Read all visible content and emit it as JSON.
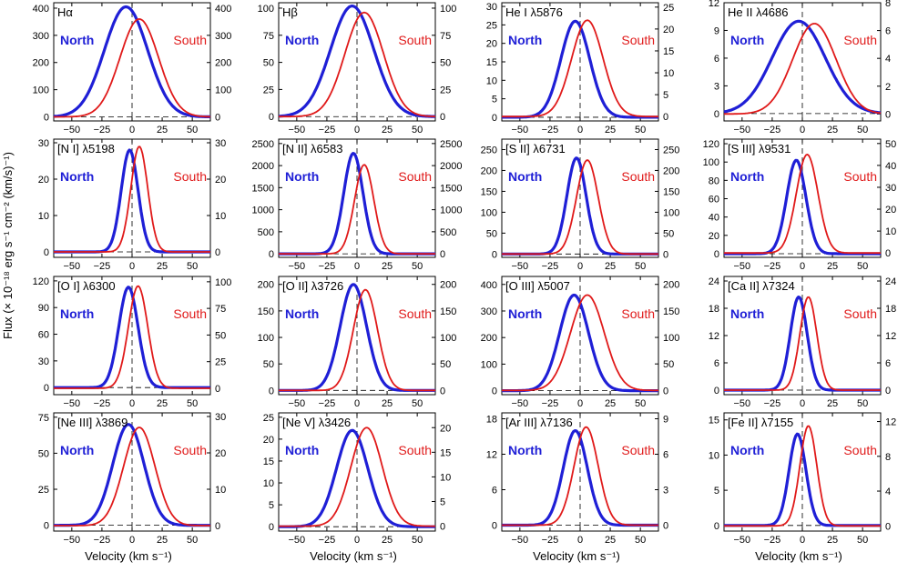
{
  "figure": {
    "ylabel": "Flux (× 10⁻¹⁸ erg s⁻¹ cm⁻² (km/s)⁻¹)",
    "xlabel": "Velocity (km s⁻¹)",
    "north_label": "North",
    "south_label": "South",
    "north_color": "#1f1fd6",
    "south_color": "#e01a1a"
  },
  "chart_data": [
    {
      "type": "line",
      "title": "Hα",
      "xlim": [
        -65,
        65
      ],
      "x_ticks": [
        -50,
        -25,
        0,
        25,
        50
      ],
      "left_ticks": [
        0,
        100,
        200,
        300,
        400
      ],
      "right_ticks": [
        0,
        100,
        200,
        300,
        400
      ],
      "left_ylim": [
        -15,
        420
      ],
      "right_ylim": [
        -15,
        420
      ],
      "series": [
        {
          "name": "North",
          "profile": {
            "center": -5,
            "peak": 405,
            "width": 18
          }
        },
        {
          "name": "South",
          "profile": {
            "center": 6,
            "peak": 360,
            "width": 16
          }
        }
      ]
    },
    {
      "type": "line",
      "title": "Hβ",
      "xlim": [
        -65,
        65
      ],
      "x_ticks": [
        -50,
        -25,
        0,
        25,
        50
      ],
      "left_ticks": [
        0,
        25,
        50,
        75,
        100
      ],
      "right_ticks": [
        0,
        25,
        50,
        75,
        100
      ],
      "left_ylim": [
        -4,
        105
      ],
      "right_ylim": [
        -4,
        105
      ],
      "series": [
        {
          "name": "North",
          "profile": {
            "center": -4,
            "peak": 102,
            "width": 18
          }
        },
        {
          "name": "South",
          "profile": {
            "center": 6,
            "peak": 96,
            "width": 16
          }
        }
      ]
    },
    {
      "type": "line",
      "title": "He I λ5876",
      "xlim": [
        -65,
        65
      ],
      "x_ticks": [
        -50,
        -25,
        0,
        25,
        50
      ],
      "left_ticks": [
        0,
        5,
        10,
        15,
        20,
        25,
        30
      ],
      "right_ticks": [
        0,
        5,
        10,
        15,
        20,
        25
      ],
      "left_ylim": [
        -1,
        31
      ],
      "right_ylim": [
        -1,
        26
      ],
      "series": [
        {
          "name": "North",
          "profile": {
            "center": -4,
            "peak": 26,
            "width": 12
          }
        },
        {
          "name": "South",
          "profile": {
            "center": 6,
            "peak": 22,
            "width": 13
          }
        }
      ]
    },
    {
      "type": "line",
      "title": "He II λ4686",
      "xlim": [
        -65,
        65
      ],
      "x_ticks": [
        -50,
        -25,
        0,
        25,
        50
      ],
      "left_ticks": [
        0,
        3,
        6,
        9,
        12
      ],
      "right_ticks": [
        0,
        2,
        4,
        6,
        8
      ],
      "left_ylim": [
        -0.8,
        12
      ],
      "right_ylim": [
        -0.5,
        8
      ],
      "series": [
        {
          "name": "North",
          "profile": {
            "center": -3,
            "peak": 10,
            "width": 22
          }
        },
        {
          "name": "South",
          "profile": {
            "center": 10,
            "peak": 6.5,
            "width": 18
          }
        }
      ]
    },
    {
      "type": "line",
      "title": "[N I] λ5198",
      "xlim": [
        -65,
        65
      ],
      "x_ticks": [
        -50,
        -25,
        0,
        25,
        50
      ],
      "left_ticks": [
        0,
        10,
        20,
        30
      ],
      "right_ticks": [
        0,
        10,
        20,
        30
      ],
      "left_ylim": [
        -1.5,
        31
      ],
      "right_ylim": [
        -1.5,
        31
      ],
      "series": [
        {
          "name": "North",
          "profile": {
            "center": -2,
            "peak": 28,
            "width": 7
          }
        },
        {
          "name": "South",
          "profile": {
            "center": 6,
            "peak": 29,
            "width": 7
          }
        }
      ]
    },
    {
      "type": "line",
      "title": "[N II] λ6583",
      "xlim": [
        -65,
        65
      ],
      "x_ticks": [
        -50,
        -25,
        0,
        25,
        50
      ],
      "left_ticks": [
        0,
        500,
        1000,
        1500,
        2000,
        2500
      ],
      "right_ticks": [
        0,
        500,
        1000,
        1500,
        2000,
        2500
      ],
      "left_ylim": [
        -80,
        2600
      ],
      "right_ylim": [
        -80,
        2600
      ],
      "series": [
        {
          "name": "North",
          "profile": {
            "center": -3,
            "peak": 2280,
            "width": 8
          }
        },
        {
          "name": "South",
          "profile": {
            "center": 6,
            "peak": 2020,
            "width": 8
          }
        }
      ]
    },
    {
      "type": "line",
      "title": "[S II] λ6731",
      "xlim": [
        -65,
        65
      ],
      "x_ticks": [
        -50,
        -25,
        0,
        25,
        50
      ],
      "left_ticks": [
        0,
        50,
        100,
        150,
        200,
        250
      ],
      "right_ticks": [
        0,
        50,
        100,
        150,
        200,
        250
      ],
      "left_ylim": [
        -8,
        275
      ],
      "right_ylim": [
        -8,
        275
      ],
      "series": [
        {
          "name": "North",
          "profile": {
            "center": -3,
            "peak": 230,
            "width": 8
          }
        },
        {
          "name": "South",
          "profile": {
            "center": 6,
            "peak": 225,
            "width": 9
          }
        }
      ]
    },
    {
      "type": "line",
      "title": "[S III] λ9531",
      "xlim": [
        -65,
        65
      ],
      "x_ticks": [
        -50,
        -25,
        0,
        25,
        50
      ],
      "left_ticks": [
        0,
        20,
        40,
        60,
        80,
        100,
        120
      ],
      "right_ticks": [
        0,
        10,
        20,
        30,
        40,
        50
      ],
      "left_ylim": [
        -4,
        125
      ],
      "right_ylim": [
        -2,
        52
      ],
      "series": [
        {
          "name": "North",
          "profile": {
            "center": -5,
            "peak": 102,
            "width": 8
          }
        },
        {
          "name": "South",
          "profile": {
            "center": 4,
            "peak": 45,
            "width": 9
          }
        }
      ]
    },
    {
      "type": "line",
      "title": "[O I] λ6300",
      "xlim": [
        -65,
        65
      ],
      "x_ticks": [
        -50,
        -25,
        0,
        25,
        50
      ],
      "left_ticks": [
        0,
        30,
        60,
        90,
        120
      ],
      "right_ticks": [
        0,
        25,
        50,
        75,
        100
      ],
      "left_ylim": [
        -8,
        125
      ],
      "right_ylim": [
        -6,
        105
      ],
      "series": [
        {
          "name": "North",
          "profile": {
            "center": -3,
            "peak": 113,
            "width": 8
          }
        },
        {
          "name": "South",
          "profile": {
            "center": 5,
            "peak": 96,
            "width": 8
          }
        }
      ]
    },
    {
      "type": "line",
      "title": "[O II] λ3726",
      "xlim": [
        -65,
        65
      ],
      "x_ticks": [
        -50,
        -25,
        0,
        25,
        50
      ],
      "left_ticks": [
        0,
        50,
        100,
        150,
        200
      ],
      "right_ticks": [
        0,
        50,
        100,
        150,
        200
      ],
      "left_ylim": [
        -8,
        215
      ],
      "right_ylim": [
        -8,
        215
      ],
      "series": [
        {
          "name": "North",
          "profile": {
            "center": -3,
            "peak": 200,
            "width": 11
          }
        },
        {
          "name": "South",
          "profile": {
            "center": 7,
            "peak": 190,
            "width": 10
          }
        }
      ]
    },
    {
      "type": "line",
      "title": "[O III] λ5007",
      "xlim": [
        -65,
        65
      ],
      "x_ticks": [
        -50,
        -25,
        0,
        25,
        50
      ],
      "left_ticks": [
        0,
        100,
        200,
        300,
        400
      ],
      "right_ticks": [
        0,
        50,
        100,
        150,
        200
      ],
      "left_ylim": [
        -15,
        430
      ],
      "right_ylim": [
        -8,
        215
      ],
      "series": [
        {
          "name": "North",
          "profile": {
            "center": -5,
            "peak": 360,
            "width": 12
          }
        },
        {
          "name": "South",
          "profile": {
            "center": 6,
            "peak": 180,
            "width": 14
          }
        }
      ]
    },
    {
      "type": "line",
      "title": "[Ca II] λ7324",
      "xlim": [
        -65,
        65
      ],
      "x_ticks": [
        -50,
        -25,
        0,
        25,
        50
      ],
      "left_ticks": [
        0,
        6,
        12,
        18,
        24
      ],
      "right_ticks": [
        0,
        6,
        12,
        18,
        24
      ],
      "left_ylim": [
        -1,
        25
      ],
      "right_ylim": [
        -1,
        25
      ],
      "series": [
        {
          "name": "North",
          "profile": {
            "center": -3,
            "peak": 20.5,
            "width": 7
          }
        },
        {
          "name": "South",
          "profile": {
            "center": 5,
            "peak": 20.5,
            "width": 7
          }
        }
      ]
    },
    {
      "type": "line",
      "title": "[Ne III] λ3869",
      "xlim": [
        -65,
        65
      ],
      "x_ticks": [
        -50,
        -25,
        0,
        25,
        50
      ],
      "left_ticks": [
        0,
        25,
        50,
        75
      ],
      "right_ticks": [
        0,
        10,
        20,
        30
      ],
      "left_ylim": [
        -4,
        78
      ],
      "right_ylim": [
        -1.5,
        31
      ],
      "series": [
        {
          "name": "North",
          "profile": {
            "center": -3,
            "peak": 70,
            "width": 13
          }
        },
        {
          "name": "South",
          "profile": {
            "center": 6,
            "peak": 27,
            "width": 13
          }
        }
      ]
    },
    {
      "type": "line",
      "title": "[Ne V] λ3426",
      "xlim": [
        -65,
        65
      ],
      "x_ticks": [
        -50,
        -25,
        0,
        25,
        50
      ],
      "left_ticks": [
        0,
        5,
        10,
        15,
        20,
        25
      ],
      "right_ticks": [
        0,
        5,
        10,
        15,
        20
      ],
      "left_ylim": [
        -1,
        26
      ],
      "right_ylim": [
        -1,
        23
      ],
      "series": [
        {
          "name": "North",
          "profile": {
            "center": -4,
            "peak": 22,
            "width": 13
          }
        },
        {
          "name": "South",
          "profile": {
            "center": 8,
            "peak": 20,
            "width": 13
          }
        }
      ]
    },
    {
      "type": "line",
      "title": "[Ar III] λ7136",
      "xlim": [
        -65,
        65
      ],
      "x_ticks": [
        -50,
        -25,
        0,
        25,
        50
      ],
      "left_ticks": [
        0,
        6,
        12,
        18
      ],
      "right_ticks": [
        0,
        3,
        6,
        9
      ],
      "left_ylim": [
        -1,
        19
      ],
      "right_ylim": [
        -0.5,
        9.5
      ],
      "series": [
        {
          "name": "North",
          "profile": {
            "center": -4,
            "peak": 16,
            "width": 10
          }
        },
        {
          "name": "South",
          "profile": {
            "center": 5,
            "peak": 8.3,
            "width": 10
          }
        }
      ]
    },
    {
      "type": "line",
      "title": "[Fe II] λ7155",
      "xlim": [
        -65,
        65
      ],
      "x_ticks": [
        -50,
        -25,
        0,
        25,
        50
      ],
      "left_ticks": [
        0,
        5,
        10,
        15
      ],
      "right_ticks": [
        0,
        4,
        8,
        12
      ],
      "left_ylim": [
        -0.8,
        16
      ],
      "right_ylim": [
        -0.6,
        13
      ],
      "series": [
        {
          "name": "North",
          "profile": {
            "center": -4,
            "peak": 13,
            "width": 7
          }
        },
        {
          "name": "South",
          "profile": {
            "center": 5,
            "peak": 11.5,
            "width": 7
          }
        }
      ]
    }
  ]
}
